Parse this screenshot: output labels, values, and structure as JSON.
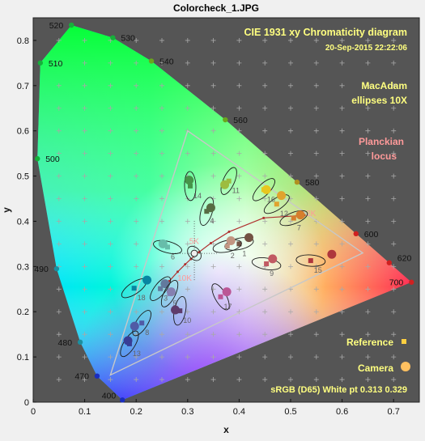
{
  "window": {
    "title": "Colorcheck_1.JPG"
  },
  "chart_data": {
    "type": "scatter",
    "title": "CIE 1931 xy Chromaticity diagram",
    "timestamp": "20-Sep-2015 22:22:06",
    "xlabel": "x",
    "ylabel": "y",
    "xlim": [
      0,
      0.75
    ],
    "ylim": [
      0,
      0.85
    ],
    "xticks": [
      0,
      0.1,
      0.2,
      0.3,
      0.4,
      0.5,
      0.6,
      0.7
    ],
    "xtick_labels": [
      "0",
      "0.1",
      "0.2",
      "0.3",
      "0.4",
      "0.5",
      "0.6",
      "0.7"
    ],
    "yticks": [
      0,
      0.1,
      0.2,
      0.3,
      0.4,
      0.5,
      0.6,
      0.7,
      0.8
    ],
    "ytick_labels": [
      "0",
      "0.1",
      "0.2",
      "0.3",
      "0.4",
      "0.5",
      "0.6",
      "0.7",
      "0.8"
    ],
    "annotations": {
      "macadam": [
        "MacAdam",
        "ellipses 10X"
      ],
      "planckian": [
        "Planckian",
        "locus"
      ],
      "reference": "Reference",
      "camera": "Camera",
      "footer": "sRGB (D65)  White pt  0.313  0.329"
    },
    "spectral_locus": [
      {
        "nm": 400,
        "x": 0.1733,
        "y": 0.0048,
        "label": "400"
      },
      {
        "nm": 470,
        "x": 0.1241,
        "y": 0.0578,
        "label": "470"
      },
      {
        "nm": 480,
        "x": 0.0913,
        "y": 0.1327,
        "label": "480"
      },
      {
        "nm": 490,
        "x": 0.0454,
        "y": 0.295,
        "label": "490"
      },
      {
        "nm": 500,
        "x": 0.0082,
        "y": 0.5384,
        "label": "500"
      },
      {
        "nm": 510,
        "x": 0.0139,
        "y": 0.7502,
        "label": "510"
      },
      {
        "nm": 520,
        "x": 0.0743,
        "y": 0.8338,
        "label": "520"
      },
      {
        "nm": 530,
        "x": 0.1547,
        "y": 0.8059,
        "label": "530"
      },
      {
        "nm": 540,
        "x": 0.2296,
        "y": 0.7543,
        "label": "540"
      },
      {
        "nm": 560,
        "x": 0.3731,
        "y": 0.6245,
        "label": "560"
      },
      {
        "nm": 580,
        "x": 0.5125,
        "y": 0.4866,
        "label": "580"
      },
      {
        "nm": 600,
        "x": 0.627,
        "y": 0.3725,
        "label": "600"
      },
      {
        "nm": 620,
        "x": 0.6915,
        "y": 0.3083,
        "label": "620"
      },
      {
        "nm": 700,
        "x": 0.7347,
        "y": 0.2653,
        "label": "700"
      }
    ],
    "srgb_gamut": [
      [
        0.64,
        0.33
      ],
      [
        0.3,
        0.6
      ],
      [
        0.15,
        0.06
      ]
    ],
    "planckian_locus": [
      {
        "x": 0.5268,
        "y": 0.4133
      },
      {
        "x": 0.4476,
        "y": 0.4074
      },
      {
        "x": 0.3805,
        "y": 0.3768,
        "label": "4K"
      },
      {
        "x": 0.3451,
        "y": 0.3516,
        "label": "5K"
      },
      {
        "x": 0.3221,
        "y": 0.3318
      },
      {
        "x": 0.3064,
        "y": 0.3166
      },
      {
        "x": 0.2952,
        "y": 0.3048
      },
      {
        "x": 0.2806,
        "y": 0.2883,
        "label": "10K"
      },
      {
        "x": 0.2644,
        "y": 0.2678
      }
    ],
    "planck_labels": [
      {
        "text": "2K",
        "x": 0.53,
        "y": 0.412
      },
      {
        "text": "5K",
        "x": 0.303,
        "y": 0.35
      },
      {
        "text": "10K",
        "x": 0.28,
        "y": 0.268
      }
    ],
    "white_point": {
      "x": 0.313,
      "y": 0.329
    },
    "patches": [
      {
        "id": "1",
        "ref": [
          0.4,
          0.35
        ],
        "cam": [
          0.419,
          0.364
        ],
        "color": "#735244"
      },
      {
        "id": "2",
        "ref": [
          0.377,
          0.345
        ],
        "cam": [
          0.384,
          0.357
        ],
        "color": "#c29682"
      },
      {
        "id": "3",
        "ref": [
          0.247,
          0.251
        ],
        "cam": [
          0.256,
          0.262
        ],
        "color": "#627a9d"
      },
      {
        "id": "4",
        "ref": [
          0.337,
          0.422
        ],
        "cam": [
          0.345,
          0.43
        ],
        "color": "#576c43"
      },
      {
        "id": "5",
        "ref": [
          0.265,
          0.24
        ],
        "cam": [
          0.268,
          0.244
        ],
        "color": "#8580b1"
      },
      {
        "id": "6",
        "ref": [
          0.261,
          0.343
        ],
        "cam": [
          0.252,
          0.35
        ],
        "color": "#67bdaa"
      },
      {
        "id": "7",
        "ref": [
          0.506,
          0.407
        ],
        "cam": [
          0.519,
          0.414
        ],
        "color": "#d67e2c"
      },
      {
        "id": "8",
        "ref": [
          0.211,
          0.175
        ],
        "cam": [
          0.197,
          0.168
        ],
        "color": "#505ba6"
      },
      {
        "id": "9",
        "ref": [
          0.453,
          0.306
        ],
        "cam": [
          0.465,
          0.317
        ],
        "color": "#c15a63"
      },
      {
        "id": "10",
        "ref": [
          0.285,
          0.202
        ],
        "cam": [
          0.276,
          0.204
        ],
        "color": "#5e3c6c"
      },
      {
        "id": "11",
        "ref": [
          0.38,
          0.489
        ],
        "cam": [
          0.372,
          0.481
        ],
        "color": "#9dbc40"
      },
      {
        "id": "12",
        "ref": [
          0.473,
          0.438
        ],
        "cam": [
          0.482,
          0.457
        ],
        "color": "#e0a32e"
      },
      {
        "id": "13",
        "ref": [
          0.187,
          0.129
        ],
        "cam": [
          0.184,
          0.136
        ],
        "color": "#383d96"
      },
      {
        "id": "14",
        "ref": [
          0.305,
          0.478
        ],
        "cam": [
          0.303,
          0.491
        ],
        "color": "#469449"
      },
      {
        "id": "15",
        "ref": [
          0.539,
          0.313
        ],
        "cam": [
          0.58,
          0.327
        ],
        "color": "#af363c"
      },
      {
        "id": "16",
        "ref": [
          0.448,
          0.47
        ],
        "cam": [
          0.453,
          0.47
        ],
        "color": "#e7c71f"
      },
      {
        "id": "17",
        "ref": [
          0.364,
          0.233
        ],
        "cam": [
          0.376,
          0.244
        ],
        "color": "#bb5695"
      },
      {
        "id": "18",
        "ref": [
          0.196,
          0.252
        ],
        "cam": [
          0.221,
          0.27
        ],
        "color": "#0885a1"
      }
    ]
  },
  "colors": {
    "plot_background": "#555555",
    "figure_background": "#f0f0f0",
    "title_text": "#ffff80",
    "planck_text": "#ff9a9a",
    "planck_line": "#b0302f",
    "gamut_line": "#c8c8c8",
    "reference_marker": "#ffd040",
    "camera_marker": "#ffc060"
  }
}
